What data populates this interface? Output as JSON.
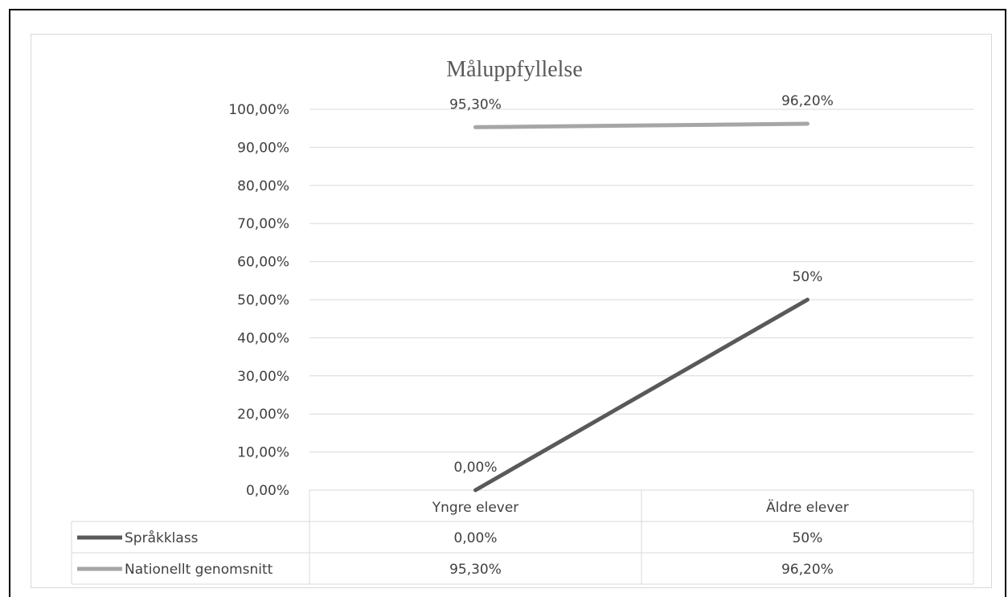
{
  "chart_data": {
    "type": "line",
    "title": "Måluppfyllelse",
    "categories": [
      "Yngre elever",
      "Äldre elever"
    ],
    "ylim": [
      0,
      1
    ],
    "y_ticks": [
      "0,00%",
      "10,00%",
      "20,00%",
      "30,00%",
      "40,00%",
      "50,00%",
      "60,00%",
      "70,00%",
      "80,00%",
      "90,00%",
      "100,00%"
    ],
    "grid": true,
    "legend": "data-table-below",
    "series": [
      {
        "name": "Språkklass",
        "values": [
          0.0,
          0.5
        ],
        "labels": [
          "0,00%",
          "50%"
        ],
        "color": "#595959"
      },
      {
        "name": "Nationellt genomsnitt",
        "values": [
          0.953,
          0.962
        ],
        "labels": [
          "95,30%",
          "96,20%"
        ],
        "color": "#a6a6a6"
      }
    ]
  }
}
